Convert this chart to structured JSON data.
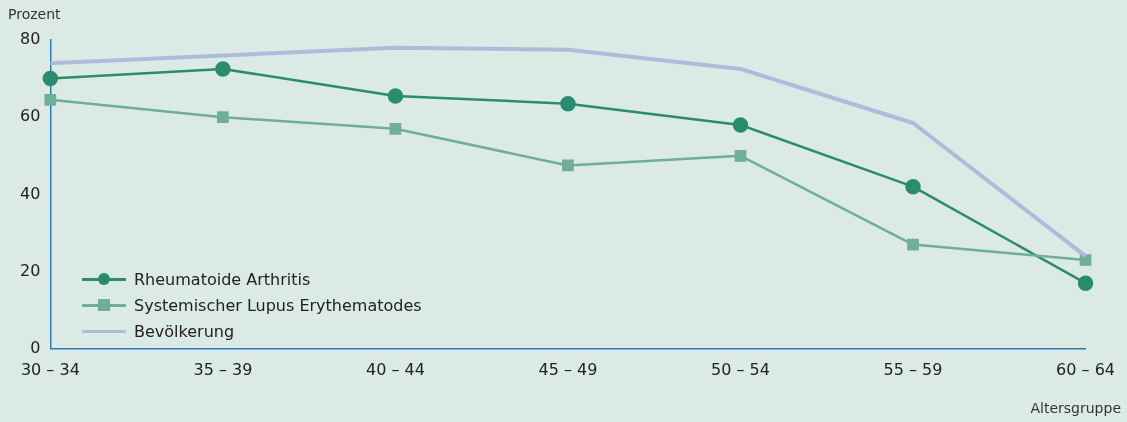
{
  "chart_data": {
    "type": "line",
    "xlabel": "Altersgruppe",
    "ylabel": "Prozent",
    "categories": [
      "30 – 34",
      "35 – 39",
      "40 – 44",
      "45 – 49",
      "50 – 54",
      "55 – 59",
      "60 – 64"
    ],
    "ylim": [
      0,
      80
    ],
    "yticks": [
      0,
      20,
      40,
      60,
      80
    ],
    "grid": false,
    "legend": "bottom left",
    "series": [
      {
        "name": "Rheumatoide Arthritis",
        "color": "#2a8c6e",
        "marker": "circle",
        "values": [
          70,
          72.5,
          65.5,
          63.5,
          58,
          42,
          17
        ]
      },
      {
        "name": "Systemischer Lupus Erythematodes",
        "color": "#70ae98",
        "marker": "square",
        "values": [
          64.5,
          60,
          57,
          47.5,
          50,
          27,
          23
        ]
      },
      {
        "name": "Bevölkerung",
        "color": "#adbcd9",
        "marker": "none",
        "values": [
          74,
          76,
          78,
          77.5,
          72.5,
          58.5,
          24
        ]
      }
    ]
  }
}
